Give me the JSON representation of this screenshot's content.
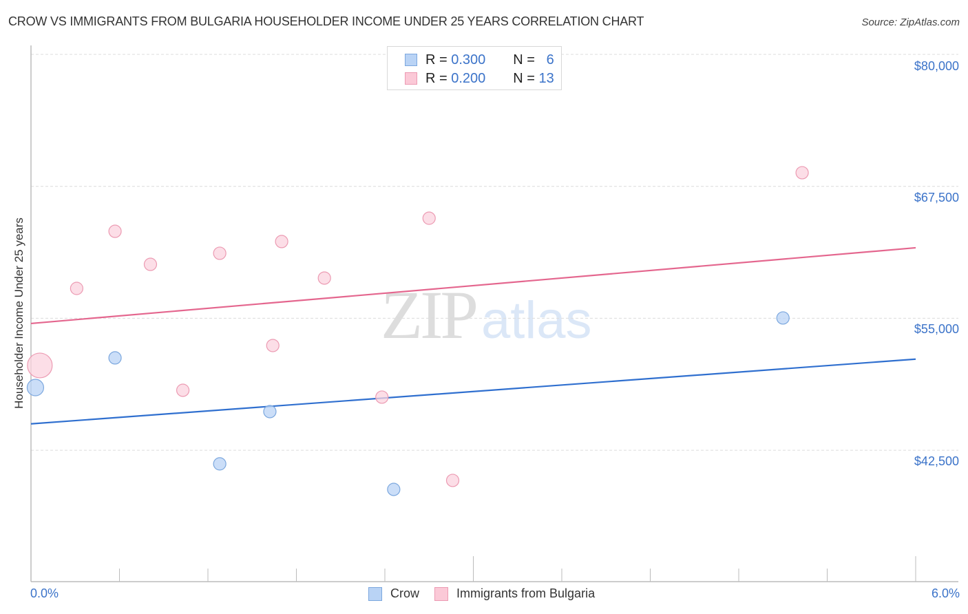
{
  "header": {
    "title": "CROW VS IMMIGRANTS FROM BULGARIA HOUSEHOLDER INCOME UNDER 25 YEARS CORRELATION CHART",
    "source": "Source: ZipAtlas.com"
  },
  "legend_top": {
    "rows": [
      {
        "r_label": "R =",
        "r_value": "0.300",
        "n_label": "N =",
        "n_value": "6"
      },
      {
        "r_label": "R =",
        "r_value": "0.200",
        "n_label": "N =",
        "n_value": "13"
      }
    ]
  },
  "legend_bottom": {
    "items": [
      {
        "label": "Crow"
      },
      {
        "label": "Immigrants from Bulgaria"
      }
    ]
  },
  "axes": {
    "ylabel": "Householder Income Under 25 years",
    "yticks": [
      "$80,000",
      "$67,500",
      "$55,000",
      "$42,500"
    ],
    "xticks": [
      "0.0%",
      "6.0%"
    ]
  },
  "watermark": {
    "zip": "ZIP",
    "atlas": "atlas"
  },
  "colors": {
    "crow": "#3b73c9",
    "crow_fill": "#b9d3f5",
    "bulgaria": "#e4668e",
    "bulgaria_fill": "#fbc9d7",
    "tick_label": "#3b73c9"
  },
  "chart_data": {
    "type": "scatter",
    "title": "CROW VS IMMIGRANTS FROM BULGARIA HOUSEHOLDER INCOME UNDER 25 YEARS CORRELATION CHART",
    "xlabel": "",
    "ylabel": "Householder Income Under 25 years",
    "xlim": [
      0,
      6.0
    ],
    "ylim": [
      32000,
      82500
    ],
    "x_unit": "%",
    "y_ticks": [
      42500,
      55000,
      67500,
      80000
    ],
    "grid": true,
    "legend_position": "top-center and bottom",
    "series": [
      {
        "name": "Crow",
        "color": "#3b73c9",
        "R": 0.3,
        "N": 6,
        "points": [
          {
            "x": 0.03,
            "y": 48440,
            "size": "large"
          },
          {
            "x": 0.57,
            "y": 51250
          },
          {
            "x": 1.28,
            "y": 41210
          },
          {
            "x": 1.62,
            "y": 46160
          },
          {
            "x": 2.46,
            "y": 38790
          },
          {
            "x": 5.1,
            "y": 55030
          }
        ],
        "trendline": {
          "x": [
            0,
            6.0
          ],
          "y": [
            45000,
            51130
          ]
        }
      },
      {
        "name": "Immigrants from Bulgaria",
        "color": "#e4668e",
        "R": 0.2,
        "N": 13,
        "points": [
          {
            "x": 0.06,
            "y": 50530,
            "size": "large"
          },
          {
            "x": 0.31,
            "y": 57830
          },
          {
            "x": 0.57,
            "y": 63240
          },
          {
            "x": 0.81,
            "y": 60110
          },
          {
            "x": 1.03,
            "y": 48180
          },
          {
            "x": 1.28,
            "y": 61160
          },
          {
            "x": 1.64,
            "y": 52420
          },
          {
            "x": 1.7,
            "y": 62270
          },
          {
            "x": 1.99,
            "y": 58810
          },
          {
            "x": 2.38,
            "y": 47530
          },
          {
            "x": 2.7,
            "y": 64480
          },
          {
            "x": 2.86,
            "y": 39640
          },
          {
            "x": 5.23,
            "y": 68790
          }
        ],
        "trendline": {
          "x": [
            0,
            6.0
          ],
          "y": [
            54510,
            61680
          ]
        }
      }
    ]
  }
}
